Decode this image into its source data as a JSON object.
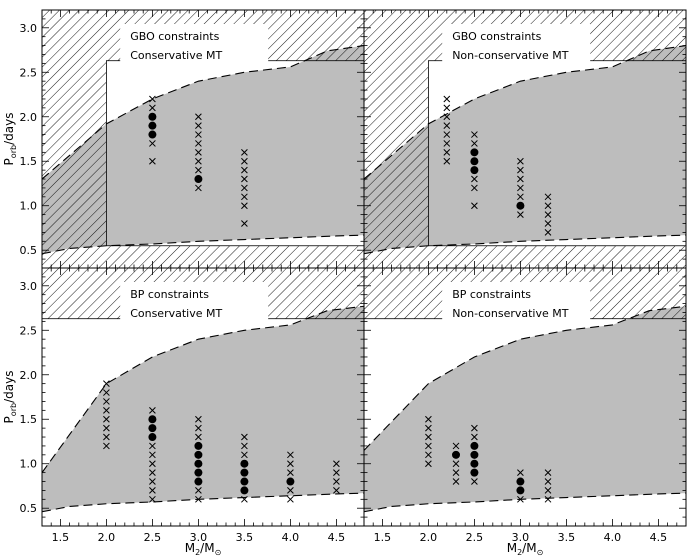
{
  "figure": {
    "xlabel": {
      "main": "M",
      "sub": "2",
      "tail": "/M",
      "sub2": "⊙"
    },
    "ylabel": {
      "main": "P",
      "sub": "orb",
      "tail": "/days"
    }
  },
  "chart_data": [
    {
      "type": "scatter",
      "panel": "top-left",
      "legend": [
        "GBO constraints",
        "Conservative MT"
      ],
      "legend_position": "top-center",
      "xlim": [
        1.3,
        4.8
      ],
      "ylim": [
        0.3,
        3.2
      ],
      "xticks": [
        "1.5",
        "2.0",
        "2.5",
        "3.0",
        "3.5",
        "4.0",
        "4.5"
      ],
      "yticks": [
        "0.5",
        "1.0",
        "1.5",
        "2.0",
        "2.5",
        "3.0"
      ],
      "upper_boundary": {
        "x": [
          1.3,
          2.0,
          2.5,
          3.0,
          3.5,
          4.0,
          4.4,
          4.8
        ],
        "y": [
          1.3,
          1.92,
          2.2,
          2.4,
          2.5,
          2.56,
          2.74,
          2.8
        ]
      },
      "lower_boundary": {
        "x": [
          1.3,
          1.6,
          2.0,
          2.5,
          3.0,
          3.5,
          4.0,
          4.5,
          4.8
        ],
        "y": [
          0.46,
          0.52,
          0.55,
          0.57,
          0.6,
          0.62,
          0.64,
          0.66,
          0.67
        ]
      },
      "obs_box": {
        "x": [
          2.0,
          4.8
        ],
        "y": [
          0.55,
          2.63
        ]
      },
      "crosses": [
        {
          "x": 2.5,
          "y": [
            1.5,
            1.7,
            2.1,
            2.2
          ]
        },
        {
          "x": 3.0,
          "y": [
            1.2,
            1.4,
            1.5,
            1.6,
            1.7,
            1.8,
            1.9,
            2.0
          ]
        },
        {
          "x": 3.5,
          "y": [
            0.8,
            1.0,
            1.1,
            1.2,
            1.3,
            1.4,
            1.5,
            1.6
          ]
        }
      ],
      "dots": [
        {
          "x": 2.5,
          "y": [
            1.8,
            1.9,
            2.0
          ]
        },
        {
          "x": 3.0,
          "y": [
            1.3
          ]
        }
      ]
    },
    {
      "type": "scatter",
      "panel": "top-right",
      "legend": [
        "GBO constraints",
        "Non-conservative MT"
      ],
      "legend_position": "top-center",
      "xlim": [
        1.3,
        4.8
      ],
      "ylim": [
        0.3,
        3.2
      ],
      "xticks": [
        "1.5",
        "2.0",
        "2.5",
        "3.0",
        "3.5",
        "4.0",
        "4.5"
      ],
      "yticks": [
        "0.5",
        "1.0",
        "1.5",
        "2.0",
        "2.5",
        "3.0"
      ],
      "upper_boundary": {
        "x": [
          1.3,
          2.0,
          2.5,
          3.0,
          3.5,
          4.0,
          4.4,
          4.8
        ],
        "y": [
          1.3,
          1.92,
          2.2,
          2.4,
          2.5,
          2.56,
          2.74,
          2.8
        ]
      },
      "lower_boundary": {
        "x": [
          1.3,
          1.6,
          2.0,
          2.5,
          3.0,
          3.5,
          4.0,
          4.5,
          4.8
        ],
        "y": [
          0.46,
          0.52,
          0.55,
          0.57,
          0.6,
          0.62,
          0.64,
          0.66,
          0.67
        ]
      },
      "obs_box": {
        "x": [
          2.0,
          4.8
        ],
        "y": [
          0.55,
          2.63
        ]
      },
      "crosses": [
        {
          "x": 2.2,
          "y": [
            1.5,
            1.6,
            1.7,
            1.8,
            1.9,
            2.0,
            2.1,
            2.2
          ]
        },
        {
          "x": 2.5,
          "y": [
            1.0,
            1.2,
            1.3,
            1.7,
            1.8
          ]
        },
        {
          "x": 3.0,
          "y": [
            0.9,
            1.1,
            1.2,
            1.3,
            1.4,
            1.5
          ]
        },
        {
          "x": 3.3,
          "y": [
            0.7,
            0.8,
            0.9,
            1.0,
            1.1
          ]
        }
      ],
      "dots": [
        {
          "x": 2.5,
          "y": [
            1.4,
            1.5,
            1.6
          ]
        },
        {
          "x": 3.0,
          "y": [
            1.0
          ]
        }
      ]
    },
    {
      "type": "scatter",
      "panel": "bottom-left",
      "legend": [
        "BP constraints",
        "Conservative MT"
      ],
      "legend_position": "top-center",
      "xlim": [
        1.3,
        4.8
      ],
      "ylim": [
        0.3,
        3.2
      ],
      "xticks": [
        "1.5",
        "2.0",
        "2.5",
        "3.0",
        "3.5",
        "4.0",
        "4.5"
      ],
      "yticks": [
        "0.5",
        "1.0",
        "1.5",
        "2.0",
        "2.5",
        "3.0"
      ],
      "upper_boundary": {
        "x": [
          1.3,
          2.0,
          2.5,
          3.0,
          3.5,
          4.0,
          4.4,
          4.8
        ],
        "y": [
          0.9,
          1.9,
          2.2,
          2.4,
          2.5,
          2.56,
          2.72,
          2.77
        ]
      },
      "lower_boundary": {
        "x": [
          1.3,
          1.6,
          2.0,
          2.5,
          3.0,
          3.5,
          4.0,
          4.5,
          4.8
        ],
        "y": [
          0.46,
          0.52,
          0.55,
          0.57,
          0.6,
          0.62,
          0.64,
          0.66,
          0.67
        ]
      },
      "obs_box": {
        "x": [
          1.3,
          4.8
        ],
        "y": [
          0.3,
          2.63
        ]
      },
      "crosses": [
        {
          "x": 2.0,
          "y": [
            1.2,
            1.3,
            1.4,
            1.5,
            1.6,
            1.7,
            1.8,
            1.9
          ]
        },
        {
          "x": 2.5,
          "y": [
            0.6,
            0.7,
            0.8,
            0.9,
            1.0,
            1.1,
            1.2,
            1.6
          ]
        },
        {
          "x": 3.0,
          "y": [
            0.6,
            0.7,
            1.3,
            1.4,
            1.5
          ]
        },
        {
          "x": 3.5,
          "y": [
            0.6,
            1.1,
            1.2,
            1.3
          ]
        },
        {
          "x": 4.0,
          "y": [
            0.6,
            0.7,
            0.9,
            1.0,
            1.1
          ]
        },
        {
          "x": 4.5,
          "y": [
            0.7,
            0.8,
            0.9,
            1.0
          ]
        }
      ],
      "dots": [
        {
          "x": 2.5,
          "y": [
            1.3,
            1.4,
            1.5
          ]
        },
        {
          "x": 3.0,
          "y": [
            0.8,
            0.9,
            1.0,
            1.1,
            1.2
          ]
        },
        {
          "x": 3.5,
          "y": [
            0.7,
            0.8,
            0.9,
            1.0
          ]
        },
        {
          "x": 4.0,
          "y": [
            0.8
          ]
        }
      ]
    },
    {
      "type": "scatter",
      "panel": "bottom-right",
      "legend": [
        "BP constraints",
        "Non-conservative MT"
      ],
      "legend_position": "top-center",
      "xlim": [
        1.3,
        4.8
      ],
      "ylim": [
        0.3,
        3.2
      ],
      "xticks": [
        "1.5",
        "2.0",
        "2.5",
        "3.0",
        "3.5",
        "4.0",
        "4.5"
      ],
      "yticks": [
        "0.5",
        "1.0",
        "1.5",
        "2.0",
        "2.5",
        "3.0"
      ],
      "upper_boundary": {
        "x": [
          1.3,
          2.0,
          2.5,
          3.0,
          3.5,
          4.0,
          4.4,
          4.8
        ],
        "y": [
          1.15,
          1.9,
          2.2,
          2.4,
          2.5,
          2.56,
          2.72,
          2.77
        ]
      },
      "lower_boundary": {
        "x": [
          1.3,
          1.6,
          2.0,
          2.5,
          3.0,
          3.5,
          4.0,
          4.5,
          4.8
        ],
        "y": [
          0.46,
          0.52,
          0.55,
          0.57,
          0.6,
          0.62,
          0.64,
          0.66,
          0.67
        ]
      },
      "obs_box": {
        "x": [
          1.3,
          4.8
        ],
        "y": [
          0.3,
          2.63
        ]
      },
      "crosses": [
        {
          "x": 2.0,
          "y": [
            1.0,
            1.1,
            1.2,
            1.3,
            1.4,
            1.5
          ]
        },
        {
          "x": 2.3,
          "y": [
            0.8,
            0.9,
            1.0,
            1.2
          ]
        },
        {
          "x": 2.5,
          "y": [
            0.8,
            1.3,
            1.4
          ]
        },
        {
          "x": 3.0,
          "y": [
            0.6,
            0.9
          ]
        },
        {
          "x": 3.3,
          "y": [
            0.6,
            0.7,
            0.8,
            0.9
          ]
        }
      ],
      "dots": [
        {
          "x": 2.3,
          "y": [
            1.1
          ]
        },
        {
          "x": 2.5,
          "y": [
            0.9,
            1.0,
            1.1,
            1.2
          ]
        },
        {
          "x": 3.0,
          "y": [
            0.7,
            0.8
          ]
        }
      ]
    }
  ]
}
